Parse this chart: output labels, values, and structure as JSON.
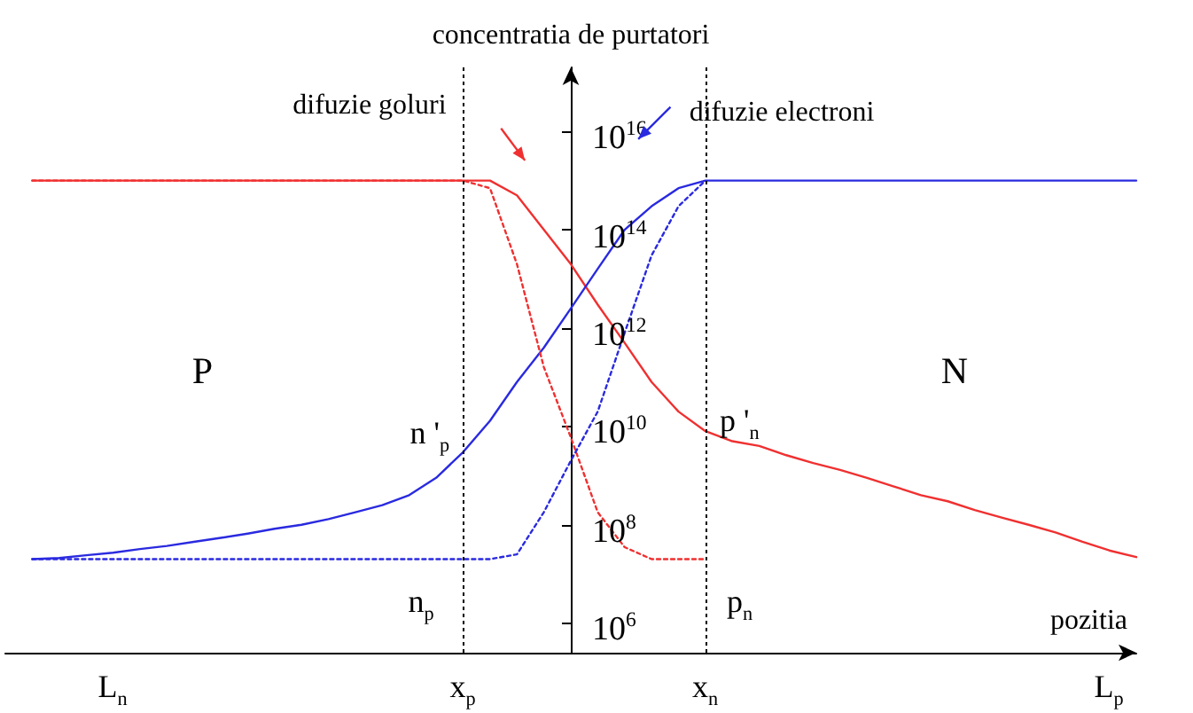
{
  "chart_data": {
    "type": "line",
    "ylabel": "concentratia de purtatori",
    "xlabel": "pozitia",
    "log": true,
    "grid": false,
    "marker": "none",
    "categories": [
      null,
      null,
      null,
      null,
      "L$_{n}$",
      null,
      null,
      null,
      null,
      null,
      null,
      null,
      null,
      null,
      null,
      null,
      null,
      "x$_{p}$",
      null,
      null,
      null,
      null,
      null,
      null,
      null,
      null,
      "x$_{n}$",
      null,
      null,
      null,
      null,
      null,
      null,
      null,
      null,
      null,
      null,
      null,
      null,
      null,
      null,
      "L$_{p}$",
      null
    ],
    "ylim": [
      250000,
      200000000000000000
    ],
    "yticks": [
      {
        "value": 1000000,
        "label": "10$^{6}$"
      },
      {
        "value": 100000000,
        "label": "10$^{8}$"
      },
      {
        "value": 10000000000,
        "label": "10$^{10}$"
      },
      {
        "value": 1000000000000,
        "label": "10$^{12}$"
      },
      {
        "value": 100000000000000,
        "label": "10$^{14}$"
      },
      {
        "value": 10000000000000000,
        "label": "10$^{16}$"
      }
    ],
    "series": [
      {
        "color": "#f03030",
        "line_style": "solid",
        "values": [
          null,
          1000000000000000.0,
          1000000000000000.0,
          1000000000000000.0,
          1000000000000000.0,
          1000000000000000.0,
          1000000000000000.0,
          1000000000000000.0,
          1000000000000000.0,
          1000000000000000.0,
          1000000000000000.0,
          1000000000000000.0,
          1000000000000000.0,
          1000000000000000.0,
          1000000000000000.0,
          1000000000000000.0,
          1000000000000000.0,
          1000000000000000.0,
          1000000000000000.0,
          500000000000000.0,
          100000000000000.0,
          20000000000000.0,
          3000000000000.0,
          500000000000.0,
          80000000000.0,
          20000000000.0,
          8000000000.0,
          5000000000.0,
          4000000000.0,
          2600000000.0,
          1800000000.0,
          1300000000.0,
          900000000.0,
          600000000.0,
          400000000.0,
          300000000.0,
          200000000.0,
          140000000.0,
          100000000.0,
          70000000.0,
          45000000.0,
          30000000.0,
          22000000.0
        ]
      },
      {
        "color": "#2a2ae0",
        "line_style": "solid",
        "values": [
          null,
          20000000.0,
          21000000.0,
          24000000.0,
          27000000.0,
          32000000.0,
          37000000.0,
          45000000.0,
          54000000.0,
          66000000.0,
          83000000.0,
          100000000.0,
          130000000.0,
          180000000.0,
          250000000.0,
          400000000.0,
          900000000.0,
          3000000000.0,
          13000000000.0,
          80000000000.0,
          400000000000.0,
          2500000000000.0,
          16000000000000.0,
          100000000000000.0,
          300000000000000.0,
          700000000000000.0,
          1000000000000000.0,
          1000000000000000.0,
          1000000000000000.0,
          1000000000000000.0,
          1000000000000000.0,
          1000000000000000.0,
          1000000000000000.0,
          1000000000000000.0,
          1000000000000000.0,
          1000000000000000.0,
          1000000000000000.0,
          1000000000000000.0,
          1000000000000000.0,
          1000000000000000.0,
          1000000000000000.0,
          1000000000000000.0,
          1000000000000000.0
        ]
      },
      {
        "color": "#f03030",
        "line_style": "dotted",
        "values": [
          null,
          1000000000000000.0,
          1000000000000000.0,
          1000000000000000.0,
          1000000000000000.0,
          1000000000000000.0,
          1000000000000000.0,
          1000000000000000.0,
          1000000000000000.0,
          1000000000000000.0,
          1000000000000000.0,
          1000000000000000.0,
          1000000000000000.0,
          1000000000000000.0,
          1000000000000000.0,
          1000000000000000.0,
          1000000000000000.0,
          1000000000000000.0,
          700000000000000.0,
          20000000000000.0,
          160000000000.0,
          6000000000.0,
          180000000.0,
          35000000.0,
          20000000.0,
          20000000.0,
          20000000.0,
          null,
          null,
          null,
          null,
          null,
          null,
          null,
          null,
          null,
          null,
          null,
          null,
          null,
          null,
          null,
          null
        ]
      },
      {
        "color": "#2a2ae0",
        "line_style": "dotted",
        "values": [
          null,
          20000000.0,
          20000000.0,
          20000000.0,
          20000000.0,
          20000000.0,
          20000000.0,
          20000000.0,
          20000000.0,
          20000000.0,
          20000000.0,
          20000000.0,
          20000000.0,
          20000000.0,
          20000000.0,
          20000000.0,
          20000000.0,
          20000000.0,
          20000000.0,
          25000000.0,
          180000000.0,
          2000000000.0,
          20000000000.0,
          800000000000.0,
          30000000000000.0,
          300000000000000.0,
          1000000000000000.0,
          null,
          null,
          null,
          null,
          null,
          null,
          null,
          null,
          null,
          null,
          null,
          null,
          null,
          null,
          null,
          null
        ]
      }
    ],
    "ref_lines": [
      {
        "axis": "x",
        "value": "x$_{p}$",
        "line_style": "dotted",
        "color": "#000000"
      },
      {
        "axis": "x",
        "value": "x$_{n}$",
        "line_style": "dotted",
        "color": "#000000"
      }
    ],
    "annotations": [
      "difuzie goluri",
      "difuzie electroni",
      {
        "text": "n '$_{p}$",
        "x": "x$_{p}$",
        "y": 3000000000
      },
      {
        "text": "p '$_{n}$",
        "x": "x$_{n}$",
        "y": 8000000000
      },
      {
        "text": "n$_{p}$",
        "x": "x$_{p}$",
        "y": 20000000
      },
      {
        "text": "p$_{n}$",
        "x": "x$_{n}$",
        "y": 20000000
      },
      "P",
      "N"
    ]
  }
}
